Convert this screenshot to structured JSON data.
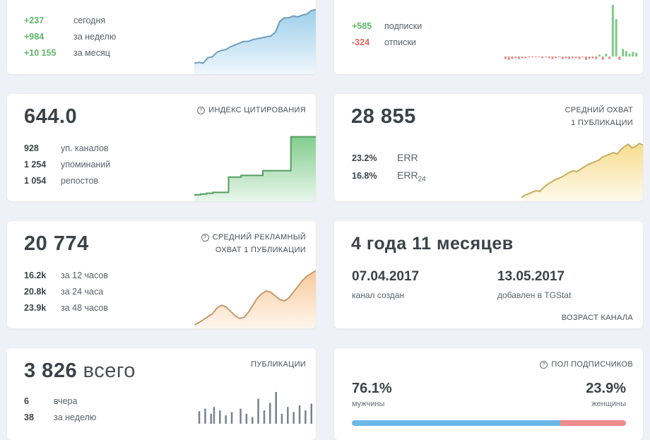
{
  "subscribers": {
    "rows": [
      {
        "value": "+237",
        "label": "сегодня"
      },
      {
        "value": "+984",
        "label": "за неделю"
      },
      {
        "value": "+10 155",
        "label": "за месяц"
      }
    ],
    "chart": {
      "type": "area",
      "color": "#8cc6e8",
      "y": [
        12,
        13,
        12,
        18,
        19,
        24,
        26,
        27,
        30,
        32,
        34,
        36,
        36,
        38,
        39,
        40,
        41,
        42,
        46,
        58,
        62,
        62,
        64,
        63,
        65,
        66,
        70,
        71
      ]
    }
  },
  "subs_change": {
    "rows": [
      {
        "value": "+585",
        "label": "подписки"
      },
      {
        "value": "-324",
        "label": "отписки"
      }
    ],
    "chart": {
      "type": "bar",
      "pos_color": "#7fc887",
      "neg_color": "#e88a8a",
      "values": [
        -3,
        -4,
        -3,
        -2,
        -3,
        -2,
        -2,
        -1,
        -1,
        -1,
        -1,
        -2,
        -1,
        -2,
        -3,
        -2,
        -1,
        -3,
        -2,
        -3,
        -2,
        -2,
        -3,
        -1,
        -4,
        -3,
        -2,
        -3,
        2,
        -4,
        3,
        -3,
        55,
        40,
        -4,
        8,
        6,
        3,
        5,
        4
      ]
    }
  },
  "citation": {
    "big": "644.0",
    "label": "ИНДЕКС ЦИТИРОВАНИЯ",
    "rows": [
      {
        "value": "928",
        "label": "уп. каналов"
      },
      {
        "value": "1 254",
        "label": "упоминаний"
      },
      {
        "value": "1 054",
        "label": "репостов"
      }
    ],
    "chart": {
      "type": "step",
      "color": "#6cc47a",
      "y": [
        8,
        8,
        9,
        9,
        10,
        10,
        11,
        11,
        11,
        11,
        11,
        30,
        30,
        30,
        30,
        32,
        32,
        32,
        32,
        32,
        32,
        32,
        38,
        38,
        38,
        38,
        38,
        38,
        38,
        38,
        38,
        80,
        80,
        80,
        80,
        80,
        80,
        80,
        80,
        80
      ]
    }
  },
  "reach": {
    "big": "28 855",
    "label": "СРЕДНИЙ ОХВАТ 1 ПУБЛИКАЦИИ",
    "label_lines": [
      "СРЕДНИЙ ОХВАТ",
      "1 ПУБЛИКАЦИИ"
    ],
    "rows": [
      {
        "value": "23.2%",
        "label": "ERR"
      },
      {
        "value": "16.8%",
        "label": "ERR",
        "sub": "24"
      }
    ],
    "chart": {
      "type": "area",
      "color": "#f5d77a",
      "y": [
        5,
        8,
        10,
        12,
        14,
        13,
        18,
        22,
        25,
        28,
        30,
        32,
        35,
        38,
        40,
        39,
        42,
        45,
        48,
        50,
        52,
        54,
        58,
        60,
        62,
        64,
        62,
        68,
        72,
        75,
        70,
        72,
        76,
        74
      ]
    }
  },
  "ad_reach": {
    "big": "20 774",
    "label": "СРЕДНИЙ РЕКЛАМНЫЙ ОХВАТ 1 ПУБЛИКАЦИИ",
    "label_lines": [
      "СРЕДНИЙ РЕКЛАМНЫЙ",
      "ОХВАТ 1 ПУБЛИКАЦИИ"
    ],
    "rows": [
      {
        "value": "16.2k",
        "label": "за 12 часов"
      },
      {
        "value": "20.8k",
        "label": "за 24 часа"
      },
      {
        "value": "23.9k",
        "label": "за 48 часов"
      }
    ],
    "chart": {
      "type": "area",
      "color": "#f7c089",
      "y": [
        5,
        8,
        12,
        16,
        20,
        28,
        32,
        30,
        24,
        18,
        14,
        15,
        22,
        32,
        42,
        48,
        52,
        50,
        45,
        40,
        38,
        42,
        50,
        58,
        66,
        72,
        76,
        80
      ]
    }
  },
  "age": {
    "big": "4 года 11 месяцев",
    "created_date": "07.04.2017",
    "created_label": "канал создан",
    "added_date": "13.05.2017",
    "added_label": "добавлен в TGStat",
    "label": "ВОЗРАСТ КАНАЛА"
  },
  "publications": {
    "big": "3 826",
    "big_suffix": "всего",
    "label": "ПУБЛИКАЦИИ",
    "rows": [
      {
        "value": "6",
        "label": "вчера"
      },
      {
        "value": "38",
        "label": "за неделю"
      }
    ],
    "chart": {
      "type": "bar",
      "color": "#7b8090",
      "values": [
        15,
        0,
        18,
        0,
        12,
        20,
        0,
        16,
        0,
        10,
        0,
        14,
        0,
        0,
        18,
        0,
        12,
        0,
        8,
        0,
        30,
        0,
        16,
        0,
        25,
        0,
        38,
        0,
        12,
        0,
        20,
        0,
        14,
        0,
        22,
        0,
        16,
        0,
        24,
        0
      ]
    }
  },
  "gender": {
    "label": "ПОЛ ПОДПИСЧИКОВ",
    "male_pct": "76.1%",
    "male_label": "мужчины",
    "female_pct": "23.9%",
    "female_label": "женщины",
    "male_share": 0.761,
    "male_color": "#6ab8e8",
    "female_color": "#ef8b8b"
  }
}
